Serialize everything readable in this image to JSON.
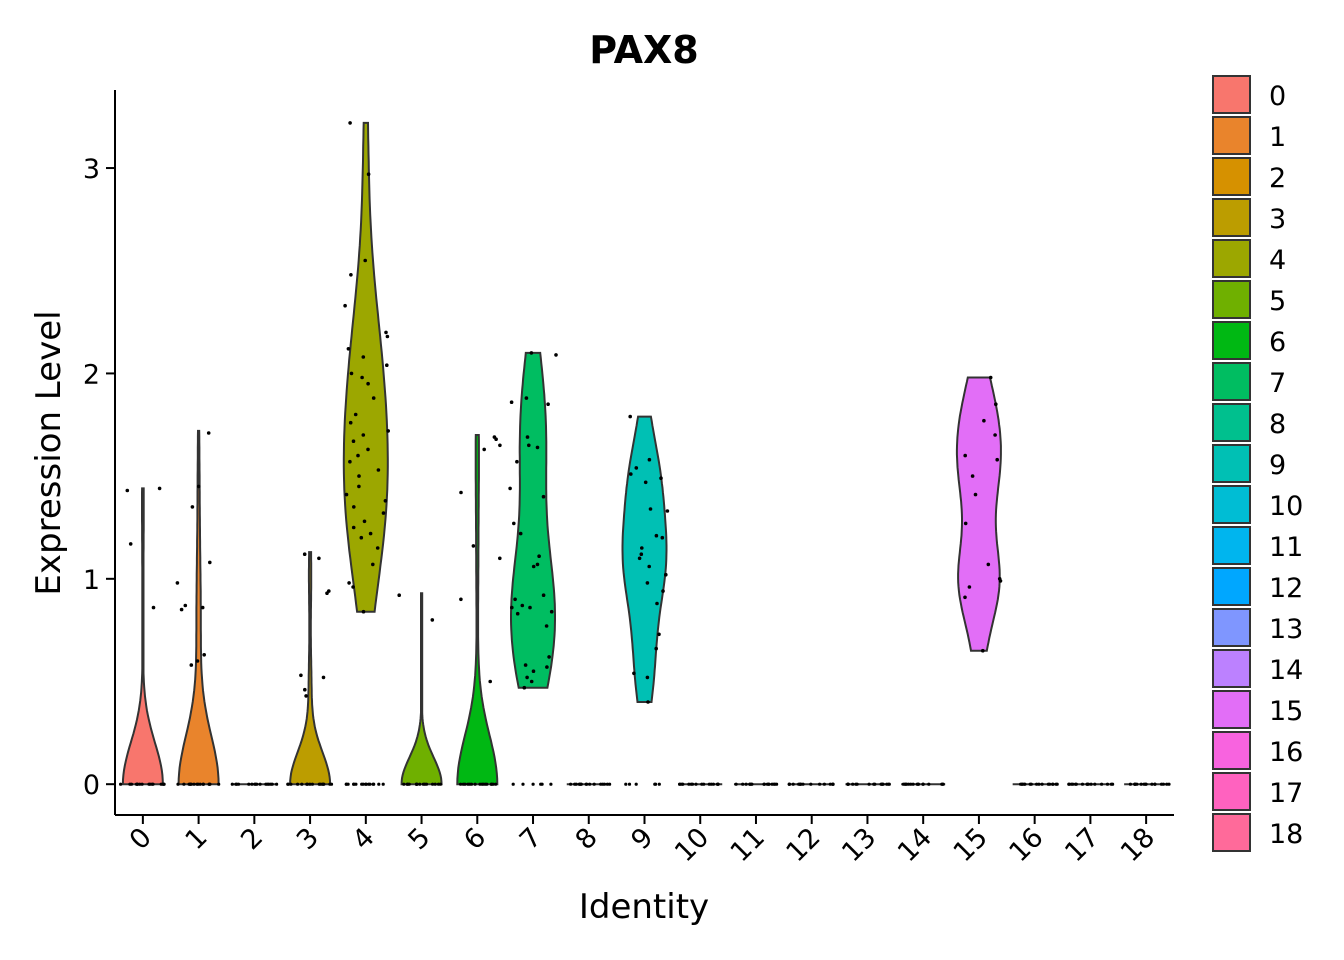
{
  "chart_data": {
    "type": "violin",
    "title": "PAX8",
    "xlabel": "Identity",
    "ylabel": "Expression Level",
    "ylim": [
      -0.15,
      3.38
    ],
    "yticks": [
      0,
      1,
      2,
      3
    ],
    "categories": [
      "0",
      "1",
      "2",
      "3",
      "4",
      "5",
      "6",
      "7",
      "8",
      "9",
      "10",
      "11",
      "12",
      "13",
      "14",
      "15",
      "16",
      "17",
      "18"
    ],
    "legend_position": "right",
    "colors": [
      "#F8766D",
      "#E9842C",
      "#D69100",
      "#BC9D00",
      "#9CA700",
      "#6FB000",
      "#00B813",
      "#00BD61",
      "#00C08E",
      "#00C0B4",
      "#00BDD4",
      "#00B5EE",
      "#00A7FF",
      "#7F96FF",
      "#BC81FF",
      "#E26EF7",
      "#F863DF",
      "#FF62BF",
      "#FF6A9A"
    ],
    "series": [
      {
        "name": "0",
        "max": 1.44,
        "points": [
          0.86,
          1.44,
          1.43,
          1.17
        ]
      },
      {
        "name": "1",
        "max": 1.72,
        "points": [
          0.86,
          0.98,
          1.08,
          1.71,
          1.45,
          1.35,
          0.87,
          0.85,
          0.63,
          0.6,
          0.58
        ]
      },
      {
        "name": "2",
        "max": 0,
        "points": []
      },
      {
        "name": "3",
        "max": 1.13,
        "points": [
          0.53,
          0.46,
          0.94,
          1.1,
          0.93,
          0.43,
          1.12,
          0.52
        ]
      },
      {
        "name": "4",
        "max": 3.22,
        "points": [
          3.22,
          2.97,
          2.55,
          2.48,
          2.33,
          2.2,
          2.18,
          2.12,
          2.08,
          2.04,
          2.0,
          1.98,
          1.95,
          1.88,
          1.8,
          1.76,
          1.72,
          1.7,
          1.67,
          1.63,
          1.6,
          1.57,
          1.53,
          1.5,
          1.45,
          1.41,
          1.38,
          1.35,
          1.32,
          1.28,
          1.25,
          1.22,
          1.2,
          1.15,
          1.07,
          0.98,
          0.96,
          0.84
        ]
      },
      {
        "name": "5",
        "max": 0.93,
        "points": [
          0.92,
          0.8
        ]
      },
      {
        "name": "6",
        "max": 1.7,
        "points": [
          1.69,
          1.68,
          1.63,
          1.42,
          1.16,
          1.1,
          0.9,
          0.5,
          1.65
        ]
      },
      {
        "name": "7",
        "max": 2.1,
        "points": [
          2.1,
          2.09,
          1.88,
          1.86,
          1.85,
          1.69,
          1.65,
          1.64,
          1.57,
          1.44,
          1.4,
          1.27,
          1.22,
          1.11,
          1.07,
          1.06,
          0.92,
          0.9,
          0.87,
          0.86,
          0.86,
          0.84,
          0.83,
          0.77,
          0.62,
          0.58,
          0.57,
          0.55,
          0.52,
          0.5,
          0.47
        ]
      },
      {
        "name": "8",
        "max": 0,
        "points": []
      },
      {
        "name": "9",
        "max": 1.79,
        "points": [
          1.79,
          1.58,
          1.54,
          1.51,
          1.49,
          1.47,
          1.34,
          1.33,
          1.21,
          1.2,
          1.15,
          1.12,
          1.1,
          1.06,
          1.02,
          0.98,
          0.94,
          0.88,
          0.73,
          0.66,
          0.54,
          0.52,
          0.4
        ]
      },
      {
        "name": "10",
        "max": 0,
        "points": []
      },
      {
        "name": "11",
        "max": 0,
        "points": []
      },
      {
        "name": "12",
        "max": 0,
        "points": []
      },
      {
        "name": "13",
        "max": 0,
        "points": []
      },
      {
        "name": "14",
        "max": 0,
        "points": []
      },
      {
        "name": "15",
        "max": 1.98,
        "points": [
          1.98,
          1.85,
          1.77,
          1.7,
          1.6,
          1.58,
          1.5,
          1.41,
          1.27,
          1.07,
          1.0,
          0.99,
          0.96,
          0.91,
          0.65
        ]
      },
      {
        "name": "16",
        "max": 0,
        "points": []
      },
      {
        "name": "17",
        "max": 0,
        "points": []
      },
      {
        "name": "18",
        "max": 0,
        "points": []
      }
    ]
  }
}
